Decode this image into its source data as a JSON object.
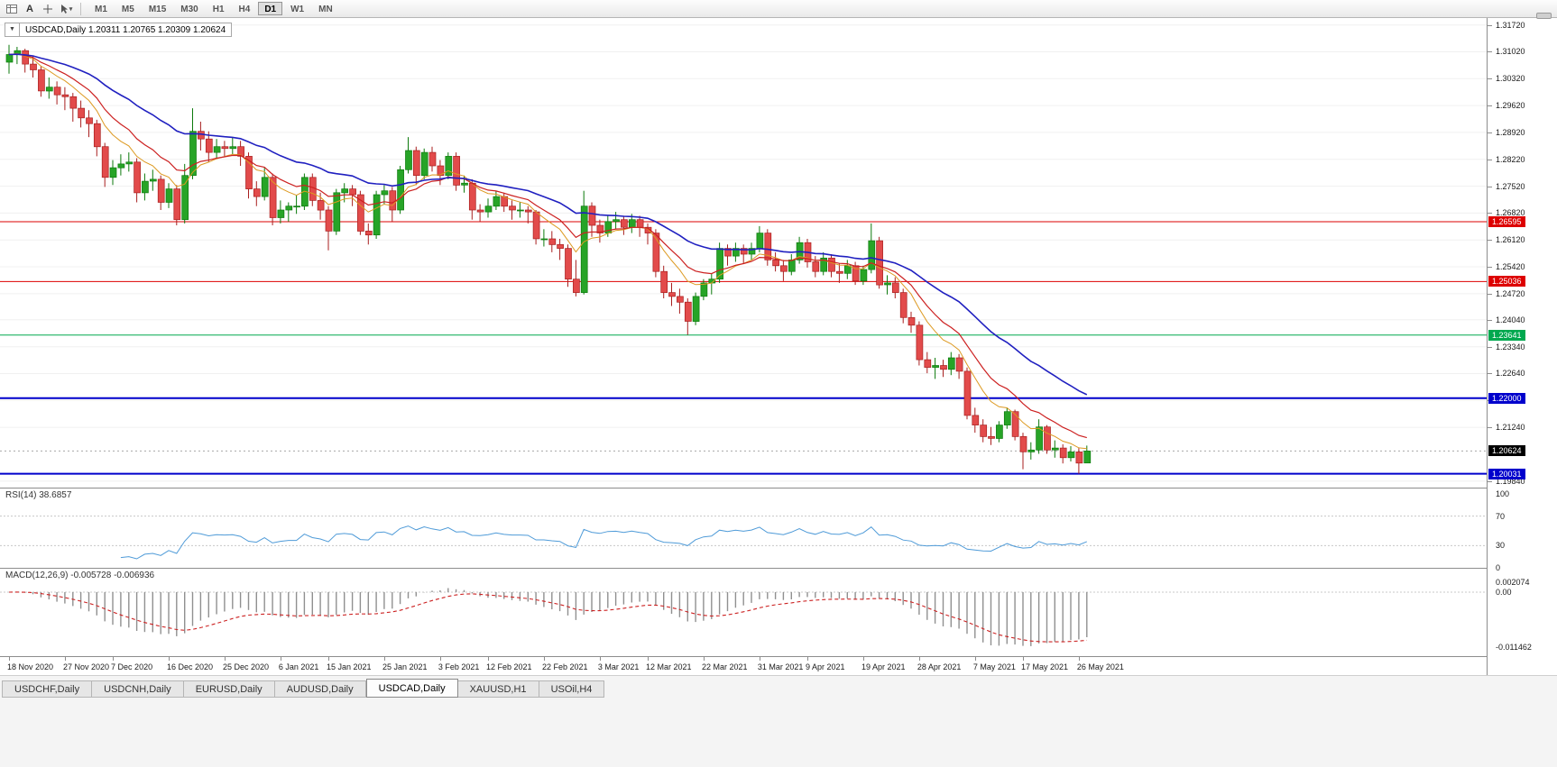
{
  "toolbar": {
    "text_button": "A",
    "timeframes": [
      "M1",
      "M5",
      "M15",
      "M30",
      "H1",
      "H4",
      "D1",
      "W1",
      "MN"
    ],
    "active_timeframe": "D1"
  },
  "header": {
    "collapse_icon": "▼",
    "text": "USDCAD,Daily  1.20311 1.20765 1.20309 1.20624"
  },
  "tabs": {
    "items": [
      "USDCHF,Daily",
      "USDCNH,Daily",
      "EURUSD,Daily",
      "AUDUSD,Daily",
      "USDCAD,Daily",
      "XAUUSD,H1",
      "USOil,H4"
    ],
    "active": "USDCAD,Daily"
  },
  "chart_data": {
    "type": "candlestick",
    "symbol": "USDCAD",
    "timeframe": "Daily",
    "quote": {
      "open": 1.20311,
      "high": 1.20765,
      "low": 1.20309,
      "close": 1.20624
    },
    "style": {
      "background": "#ffffff",
      "grid": "#f0f0f0",
      "up_fill": "#27a427",
      "up_border": "#0c7a0c",
      "down_fill": "#e24b4b",
      "down_border": "#a81f1f"
    },
    "price_axis": {
      "max": 1.319,
      "min": 1.1967,
      "labels": [
        "1.31720",
        "1.31020",
        "1.30320",
        "1.29620",
        "1.28920",
        "1.28220",
        "1.27520",
        "1.26820",
        "1.26120",
        "1.25420",
        "1.24720",
        "1.24040",
        "1.23340",
        "1.22640",
        "1.21940",
        "1.21240",
        "1.19840"
      ]
    },
    "hlines": [
      {
        "label": "1.26595",
        "value": 1.26595,
        "color": "#dd0000",
        "width": 1
      },
      {
        "label": "1.25036",
        "value": 1.25036,
        "color": "#dd0000",
        "width": 1
      },
      {
        "label": "1.23641",
        "value": 1.23641,
        "color": "#00a84f",
        "width": 1
      },
      {
        "label": "1.22000",
        "value": 1.22,
        "color": "#0000cc",
        "width": 2
      },
      {
        "label": "1.20031",
        "value": 1.20031,
        "color": "#0000cc",
        "width": 2
      }
    ],
    "current_price": {
      "label": "1.20624",
      "value": 1.20624,
      "color": "#000000"
    },
    "ma": [
      {
        "name": "fast",
        "period": 8,
        "color": "#dd9a22",
        "width": 1
      },
      {
        "name": "medium",
        "period": 13,
        "color": "#cc2020",
        "width": 1.2
      },
      {
        "name": "slow",
        "period": 30,
        "color": "#2020c0",
        "width": 1.6
      }
    ],
    "rsi": {
      "label": "RSI(14) 38.6857",
      "period": 14,
      "value": 38.6857,
      "color": "#4f9bd8",
      "levels": [
        70,
        30
      ],
      "axis": [
        {
          "label": "100",
          "value": 100
        },
        {
          "label": "70",
          "value": 70
        },
        {
          "label": "30",
          "value": 30
        },
        {
          "label": "0",
          "value": 0
        }
      ]
    },
    "macd": {
      "label": "MACD(12,26,9) -0.005728 -0.006936",
      "fast": 12,
      "slow": 26,
      "signal_period": 9,
      "main_value": -0.005728,
      "signal_value": -0.006936,
      "histogram_color": "#909090",
      "signal_color": "#cc2222",
      "axis": [
        {
          "label": "0.002074",
          "value": 0.002074
        },
        {
          "label": "0.00",
          "value": 0
        },
        {
          "label": "-0.011462",
          "value": -0.011462
        }
      ]
    },
    "time_axis": [
      {
        "label": "18 Nov 2020",
        "index": 0
      },
      {
        "label": "27 Nov 2020",
        "index": 7
      },
      {
        "label": "7 Dec 2020",
        "index": 13
      },
      {
        "label": "16 Dec 2020",
        "index": 20
      },
      {
        "label": "25 Dec 2020",
        "index": 27
      },
      {
        "label": "6 Jan 2021",
        "index": 34
      },
      {
        "label": "15 Jan 2021",
        "index": 40
      },
      {
        "label": "25 Jan 2021",
        "index": 47
      },
      {
        "label": "3 Feb 2021",
        "index": 54
      },
      {
        "label": "12 Feb 2021",
        "index": 60
      },
      {
        "label": "22 Feb 2021",
        "index": 67
      },
      {
        "label": "3 Mar 2021",
        "index": 74
      },
      {
        "label": "12 Mar 2021",
        "index": 80
      },
      {
        "label": "22 Mar 2021",
        "index": 87
      },
      {
        "label": "31 Mar 2021",
        "index": 94
      },
      {
        "label": "9 Apr 2021",
        "index": 100
      },
      {
        "label": "19 Apr 2021",
        "index": 107
      },
      {
        "label": "28 Apr 2021",
        "index": 114
      },
      {
        "label": "7 May 2021",
        "index": 121
      },
      {
        "label": "17 May 2021",
        "index": 127
      },
      {
        "label": "26 May 2021",
        "index": 134
      }
    ],
    "candles": [
      [
        1.3075,
        1.312,
        1.3045,
        1.3095
      ],
      [
        1.3095,
        1.3115,
        1.307,
        1.3105
      ],
      [
        1.3105,
        1.311,
        1.3048,
        1.307
      ],
      [
        1.307,
        1.3092,
        1.3035,
        1.3055
      ],
      [
        1.3055,
        1.3065,
        1.2985,
        1.3
      ],
      [
        1.3,
        1.3035,
        1.298,
        1.301
      ],
      [
        1.301,
        1.3025,
        1.2965,
        1.299
      ],
      [
        1.299,
        1.301,
        1.295,
        1.2985
      ],
      [
        1.2985,
        1.2995,
        1.292,
        1.2955
      ],
      [
        1.2955,
        1.2975,
        1.2905,
        1.293
      ],
      [
        1.293,
        1.295,
        1.288,
        1.2915
      ],
      [
        1.2915,
        1.2925,
        1.283,
        1.2855
      ],
      [
        1.2855,
        1.2865,
        1.275,
        1.2775
      ],
      [
        1.2775,
        1.282,
        1.2755,
        1.28
      ],
      [
        1.28,
        1.2835,
        1.278,
        1.281
      ],
      [
        1.281,
        1.284,
        1.279,
        1.2815
      ],
      [
        1.2815,
        1.2825,
        1.271,
        1.2735
      ],
      [
        1.2735,
        1.2785,
        1.2715,
        1.2765
      ],
      [
        1.2765,
        1.2795,
        1.274,
        1.277
      ],
      [
        1.277,
        1.278,
        1.269,
        1.271
      ],
      [
        1.271,
        1.276,
        1.2695,
        1.2745
      ],
      [
        1.2745,
        1.2755,
        1.265,
        1.2665
      ],
      [
        1.2665,
        1.281,
        1.2655,
        1.278
      ],
      [
        1.278,
        1.2955,
        1.277,
        1.2895
      ],
      [
        1.2895,
        1.292,
        1.2845,
        1.2875
      ],
      [
        1.2875,
        1.2895,
        1.2815,
        1.284
      ],
      [
        1.284,
        1.2875,
        1.2825,
        1.2855
      ],
      [
        1.2855,
        1.287,
        1.283,
        1.285
      ],
      [
        1.285,
        1.288,
        1.2835,
        1.2855
      ],
      [
        1.2855,
        1.287,
        1.2805,
        1.283
      ],
      [
        1.283,
        1.284,
        1.272,
        1.2745
      ],
      [
        1.2745,
        1.2765,
        1.27,
        1.2725
      ],
      [
        1.2725,
        1.28,
        1.2715,
        1.2775
      ],
      [
        1.2775,
        1.2785,
        1.265,
        1.267
      ],
      [
        1.267,
        1.2715,
        1.2655,
        1.269
      ],
      [
        1.269,
        1.271,
        1.266,
        1.27
      ],
      [
        1.27,
        1.273,
        1.268,
        1.27
      ],
      [
        1.27,
        1.2785,
        1.269,
        1.2775
      ],
      [
        1.2775,
        1.2785,
        1.27,
        1.2715
      ],
      [
        1.2715,
        1.2735,
        1.2665,
        1.269
      ],
      [
        1.269,
        1.27,
        1.2585,
        1.2635
      ],
      [
        1.2635,
        1.2745,
        1.2625,
        1.2735
      ],
      [
        1.2735,
        1.276,
        1.271,
        1.2745
      ],
      [
        1.2745,
        1.2755,
        1.27,
        1.273
      ],
      [
        1.273,
        1.274,
        1.2625,
        1.2635
      ],
      [
        1.2635,
        1.2655,
        1.26,
        1.2625
      ],
      [
        1.2625,
        1.274,
        1.2615,
        1.273
      ],
      [
        1.273,
        1.2755,
        1.2705,
        1.274
      ],
      [
        1.274,
        1.275,
        1.266,
        1.269
      ],
      [
        1.269,
        1.2805,
        1.268,
        1.2795
      ],
      [
        1.2795,
        1.288,
        1.2785,
        1.2845
      ],
      [
        1.2845,
        1.2855,
        1.2755,
        1.278
      ],
      [
        1.278,
        1.285,
        1.277,
        1.284
      ],
      [
        1.284,
        1.2855,
        1.279,
        1.2805
      ],
      [
        1.2805,
        1.282,
        1.2755,
        1.278
      ],
      [
        1.278,
        1.284,
        1.277,
        1.283
      ],
      [
        1.283,
        1.284,
        1.274,
        1.2755
      ],
      [
        1.2755,
        1.278,
        1.2735,
        1.276
      ],
      [
        1.276,
        1.277,
        1.2665,
        1.269
      ],
      [
        1.269,
        1.2705,
        1.266,
        1.2685
      ],
      [
        1.2685,
        1.272,
        1.267,
        1.27
      ],
      [
        1.27,
        1.274,
        1.269,
        1.2725
      ],
      [
        1.2725,
        1.2735,
        1.2685,
        1.27
      ],
      [
        1.27,
        1.2715,
        1.2665,
        1.269
      ],
      [
        1.269,
        1.271,
        1.267,
        1.269
      ],
      [
        1.269,
        1.27,
        1.2655,
        1.2685
      ],
      [
        1.2685,
        1.269,
        1.26,
        1.2615
      ],
      [
        1.2615,
        1.264,
        1.2595,
        1.2615
      ],
      [
        1.2615,
        1.2635,
        1.258,
        1.26
      ],
      [
        1.26,
        1.2615,
        1.256,
        1.259
      ],
      [
        1.259,
        1.26,
        1.249,
        1.251
      ],
      [
        1.251,
        1.256,
        1.2465,
        1.2475
      ],
      [
        1.2475,
        1.274,
        1.247,
        1.27
      ],
      [
        1.27,
        1.271,
        1.262,
        1.265
      ],
      [
        1.265,
        1.2665,
        1.2605,
        1.263
      ],
      [
        1.263,
        1.2675,
        1.262,
        1.266
      ],
      [
        1.266,
        1.2685,
        1.264,
        1.2665
      ],
      [
        1.2665,
        1.2675,
        1.2625,
        1.2645
      ],
      [
        1.2645,
        1.268,
        1.263,
        1.2665
      ],
      [
        1.2665,
        1.2675,
        1.262,
        1.2645
      ],
      [
        1.2645,
        1.2655,
        1.26,
        1.263
      ],
      [
        1.263,
        1.264,
        1.2515,
        1.253
      ],
      [
        1.253,
        1.2545,
        1.246,
        1.2475
      ],
      [
        1.2475,
        1.25,
        1.244,
        1.2465
      ],
      [
        1.2465,
        1.2485,
        1.242,
        1.245
      ],
      [
        1.245,
        1.246,
        1.2365,
        1.24
      ],
      [
        1.24,
        1.2475,
        1.239,
        1.2465
      ],
      [
        1.2465,
        1.251,
        1.2455,
        1.25
      ],
      [
        1.25,
        1.2525,
        1.247,
        1.251
      ],
      [
        1.251,
        1.2605,
        1.25,
        1.259
      ],
      [
        1.259,
        1.26,
        1.2545,
        1.257
      ],
      [
        1.257,
        1.2605,
        1.2555,
        1.259
      ],
      [
        1.259,
        1.26,
        1.255,
        1.2575
      ],
      [
        1.2575,
        1.2605,
        1.256,
        1.259
      ],
      [
        1.259,
        1.2648,
        1.258,
        1.263
      ],
      [
        1.263,
        1.264,
        1.2545,
        1.256
      ],
      [
        1.256,
        1.258,
        1.253,
        1.2545
      ],
      [
        1.2545,
        1.256,
        1.2505,
        1.253
      ],
      [
        1.253,
        1.2575,
        1.252,
        1.256
      ],
      [
        1.256,
        1.262,
        1.255,
        1.2605
      ],
      [
        1.2605,
        1.2615,
        1.254,
        1.2555
      ],
      [
        1.2555,
        1.257,
        1.2515,
        1.253
      ],
      [
        1.253,
        1.258,
        1.252,
        1.2565
      ],
      [
        1.2565,
        1.2575,
        1.2515,
        1.253
      ],
      [
        1.253,
        1.255,
        1.25,
        1.2525
      ],
      [
        1.2525,
        1.256,
        1.251,
        1.2545
      ],
      [
        1.2545,
        1.2555,
        1.2495,
        1.2505
      ],
      [
        1.2505,
        1.2545,
        1.2495,
        1.2535
      ],
      [
        1.2535,
        1.2655,
        1.2525,
        1.261
      ],
      [
        1.261,
        1.262,
        1.2485,
        1.2495
      ],
      [
        1.2495,
        1.252,
        1.247,
        1.25
      ],
      [
        1.25,
        1.2515,
        1.246,
        1.2475
      ],
      [
        1.2475,
        1.2485,
        1.2395,
        1.241
      ],
      [
        1.241,
        1.2425,
        1.237,
        1.239
      ],
      [
        1.239,
        1.24,
        1.2285,
        1.23
      ],
      [
        1.23,
        1.232,
        1.2265,
        1.228
      ],
      [
        1.228,
        1.2305,
        1.225,
        1.2285
      ],
      [
        1.2285,
        1.23,
        1.2255,
        1.2275
      ],
      [
        1.2275,
        1.232,
        1.226,
        1.2305
      ],
      [
        1.2305,
        1.2315,
        1.225,
        1.227
      ],
      [
        1.227,
        1.228,
        1.2145,
        1.2155
      ],
      [
        1.2155,
        1.2175,
        1.211,
        1.213
      ],
      [
        1.213,
        1.2145,
        1.2085,
        1.21
      ],
      [
        1.21,
        1.2125,
        1.2078,
        1.2095
      ],
      [
        1.2095,
        1.214,
        1.2085,
        1.213
      ],
      [
        1.213,
        1.2175,
        1.212,
        1.2165
      ],
      [
        1.2165,
        1.217,
        1.209,
        1.21
      ],
      [
        1.21,
        1.211,
        1.2015,
        1.206
      ],
      [
        1.206,
        1.2085,
        1.204,
        1.2065
      ],
      [
        1.2065,
        1.2145,
        1.2055,
        1.2125
      ],
      [
        1.2125,
        1.213,
        1.2055,
        1.2065
      ],
      [
        1.2065,
        1.209,
        1.2045,
        1.207
      ],
      [
        1.207,
        1.208,
        1.203,
        1.2045
      ],
      [
        1.2045,
        1.2075,
        1.2035,
        1.206
      ],
      [
        1.206,
        1.207,
        1.2003,
        1.2031
      ],
      [
        1.20311,
        1.20765,
        1.20309,
        1.20624
      ]
    ]
  }
}
